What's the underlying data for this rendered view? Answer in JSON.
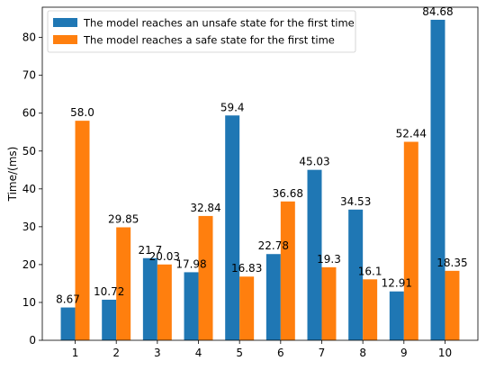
{
  "chart_data": {
    "type": "bar",
    "categories": [
      "1",
      "2",
      "3",
      "4",
      "5",
      "6",
      "7",
      "8",
      "9",
      "10"
    ],
    "series": [
      {
        "name": "The model reaches an unsafe state for the first time",
        "values": [
          8.67,
          10.72,
          21.7,
          17.98,
          59.4,
          22.78,
          45.03,
          34.53,
          12.91,
          84.68
        ],
        "labels": [
          "8.67",
          "10.72",
          "21.7",
          "17.98",
          "59.4",
          "22.78",
          "45.03",
          "34.53",
          "12.91",
          "84.68"
        ],
        "color": "#1f77b4"
      },
      {
        "name": "The model reaches a safe state for the first time",
        "values": [
          58.0,
          29.85,
          20.03,
          32.84,
          16.83,
          36.68,
          19.3,
          16.1,
          52.44,
          18.35
        ],
        "labels": [
          "58.0",
          "29.85",
          "20.03",
          "32.84",
          "16.83",
          "36.68",
          "19.3",
          "16.1",
          "52.44",
          "18.35"
        ],
        "color": "#ff7f0e"
      }
    ],
    "ylabel": "Time/(ms)",
    "xlabel": "",
    "title": "",
    "ylim": [
      0,
      88
    ],
    "yticks": [
      0,
      10,
      20,
      30,
      40,
      50,
      60,
      70,
      80
    ],
    "legend": "top-left",
    "grid": false
  }
}
